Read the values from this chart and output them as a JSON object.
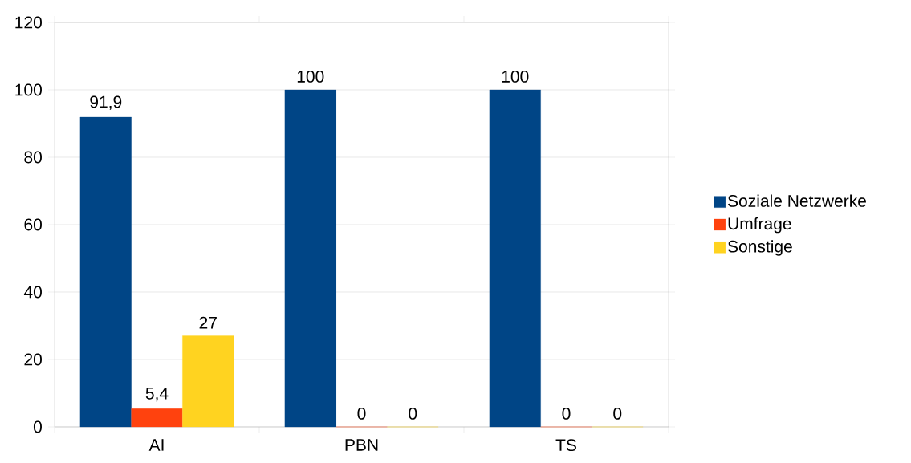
{
  "chart_data": {
    "type": "bar",
    "categories": [
      "AI",
      "PBN",
      "TS"
    ],
    "series": [
      {
        "name": "Soziale Netzwerke",
        "color": "#004586",
        "values": [
          91.9,
          100,
          100
        ],
        "value_labels": [
          "91,9",
          "100",
          "100"
        ]
      },
      {
        "name": "Umfrage",
        "color": "#ff420e",
        "values": [
          5.4,
          0,
          0
        ],
        "value_labels": [
          "5,4",
          "0",
          "0"
        ]
      },
      {
        "name": "Sonstige",
        "color": "#ffd320",
        "values": [
          27,
          0,
          0
        ],
        "value_labels": [
          "27",
          "0",
          "0"
        ]
      }
    ],
    "ylim": [
      0,
      120
    ],
    "yticks": [
      0,
      20,
      40,
      60,
      80,
      100,
      120
    ],
    "grid": "y",
    "legend": "right"
  }
}
